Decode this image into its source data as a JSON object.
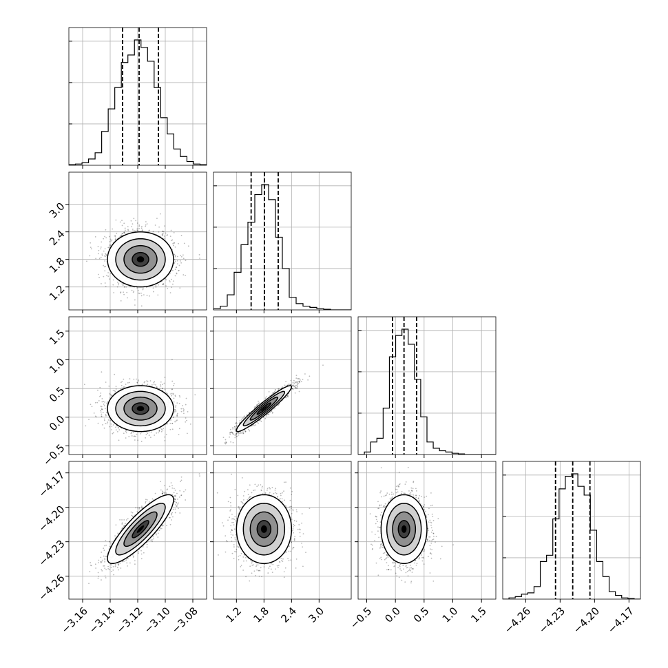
{
  "chart_data": {
    "type": "corner",
    "title": "",
    "grid": true,
    "quantiles_shown": [
      0.16,
      0.5,
      0.84
    ],
    "parameters": [
      {
        "range": [
          -3.17,
          -3.07
        ],
        "ticks": [
          "−3.16",
          "−3.14",
          "−3.12",
          "−3.10",
          "−3.08"
        ],
        "tick_values": [
          -3.16,
          -3.14,
          -3.12,
          -3.1,
          -3.08
        ],
        "quantiles": [
          -3.131,
          -3.119,
          -3.105
        ],
        "mean": -3.118,
        "sd": 0.012,
        "hist": [
          0.005,
          0.01,
          0.02,
          0.05,
          0.1,
          0.27,
          0.45,
          0.62,
          0.82,
          0.88,
          1.0,
          0.94,
          0.83,
          0.62,
          0.38,
          0.25,
          0.13,
          0.07,
          0.03,
          0.01,
          0.005
        ]
      },
      {
        "range": [
          0.7,
          3.7
        ],
        "ticks": [
          "1.2",
          "1.8",
          "2.4",
          "3.0"
        ],
        "tick_values": [
          1.2,
          1.8,
          2.4,
          3.0
        ],
        "quantiles": [
          1.52,
          1.81,
          2.11
        ],
        "mean": 1.8,
        "sd": 0.3,
        "hist": [
          0.01,
          0.03,
          0.12,
          0.3,
          0.52,
          0.7,
          0.92,
          1.0,
          0.88,
          0.58,
          0.33,
          0.1,
          0.05,
          0.03,
          0.02,
          0.01,
          0.005,
          0.0,
          0.0,
          0.0
        ]
      },
      {
        "range": [
          -0.65,
          1.75
        ],
        "ticks": [
          "−0.5",
          "0.0",
          "0.5",
          "1.0",
          "1.5"
        ],
        "tick_values": [
          -0.5,
          0.0,
          0.5,
          1.0,
          1.5
        ],
        "quantiles": [
          -0.05,
          0.15,
          0.37
        ],
        "mean": 0.15,
        "sd": 0.2,
        "hist": [
          0.0,
          0.02,
          0.1,
          0.13,
          0.37,
          0.78,
          0.95,
          1.0,
          0.88,
          0.6,
          0.3,
          0.1,
          0.05,
          0.03,
          0.02,
          0.01,
          0.005,
          0.0,
          0.0,
          0.0,
          0.0,
          0.0
        ]
      },
      {
        "range": [
          -4.28,
          -4.16
        ],
        "ticks": [
          "−4.26",
          "−4.23",
          "−4.20",
          "−4.17"
        ],
        "tick_values": [
          -4.26,
          -4.23,
          -4.2,
          -4.17
        ],
        "quantiles": [
          -4.234,
          -4.219,
          -4.204
        ],
        "mean": -4.219,
        "sd": 0.015,
        "hist": [
          0.0,
          0.01,
          0.02,
          0.04,
          0.05,
          0.1,
          0.3,
          0.35,
          0.64,
          0.88,
          0.98,
          1.0,
          0.9,
          0.83,
          0.55,
          0.3,
          0.18,
          0.06,
          0.03,
          0.01,
          0.005,
          0.0
        ]
      }
    ],
    "correlations": [
      [
        1,
        0,
        0,
        0.85
      ],
      [
        0,
        1,
        0.95,
        0
      ],
      [
        0,
        0.95,
        1,
        0
      ],
      [
        0.85,
        0,
        0,
        1
      ]
    ]
  }
}
